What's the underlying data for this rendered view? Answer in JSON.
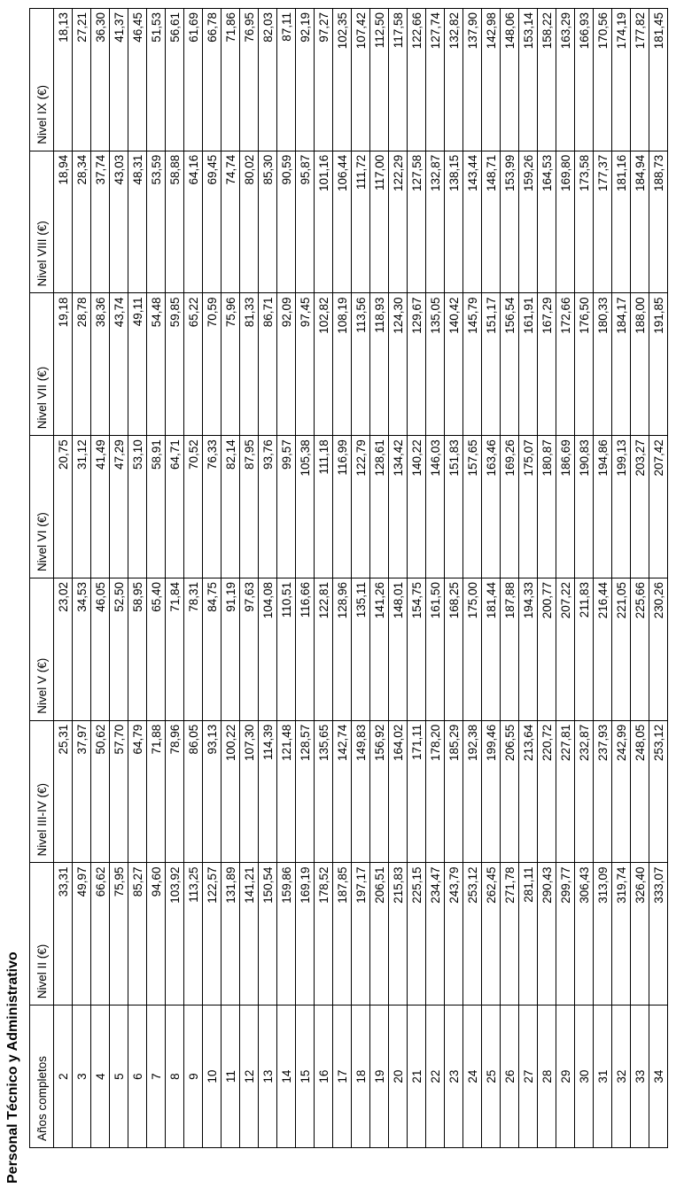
{
  "title": "Personal Técnico y Administrativo",
  "headers": [
    "Años completos",
    "Nivel II (€)",
    "Nivel III-IV (€)",
    "Nivel V (€)",
    "Nivel VI (€)",
    "Nivel VII (€)",
    "Nivel VIII (€)",
    "Nivel IX (€)"
  ],
  "rows": [
    [
      "2",
      "33,31",
      "25,31",
      "23,02",
      "20,75",
      "19,18",
      "18,94",
      "18,13"
    ],
    [
      "3",
      "49,97",
      "37,97",
      "34,53",
      "31,12",
      "28,78",
      "28,34",
      "27,21"
    ],
    [
      "4",
      "66,62",
      "50,62",
      "46,05",
      "41,49",
      "38,36",
      "37,74",
      "36,30"
    ],
    [
      "5",
      "75,95",
      "57,70",
      "52,50",
      "47,29",
      "43,74",
      "43,03",
      "41,37"
    ],
    [
      "6",
      "85,27",
      "64,79",
      "58,95",
      "53,10",
      "49,11",
      "48,31",
      "46,45"
    ],
    [
      "7",
      "94,60",
      "71,88",
      "65,40",
      "58,91",
      "54,48",
      "53,59",
      "51,53"
    ],
    [
      "8",
      "103,92",
      "78,96",
      "71,84",
      "64,71",
      "59,85",
      "58,88",
      "56,61"
    ],
    [
      "9",
      "113,25",
      "86,05",
      "78,31",
      "70,52",
      "65,22",
      "64,16",
      "61,69"
    ],
    [
      "10",
      "122,57",
      "93,13",
      "84,75",
      "76,33",
      "70,59",
      "69,45",
      "66,78"
    ],
    [
      "11",
      "131,89",
      "100,22",
      "91,19",
      "82,14",
      "75,96",
      "74,74",
      "71,86"
    ],
    [
      "12",
      "141,21",
      "107,30",
      "97,63",
      "87,95",
      "81,33",
      "80,02",
      "76,95"
    ],
    [
      "13",
      "150,54",
      "114,39",
      "104,08",
      "93,76",
      "86,71",
      "85,30",
      "82,03"
    ],
    [
      "14",
      "159,86",
      "121,48",
      "110,51",
      "99,57",
      "92,09",
      "90,59",
      "87,11"
    ],
    [
      "15",
      "169,19",
      "128,57",
      "116,66",
      "105,38",
      "97,45",
      "95,87",
      "92,19"
    ],
    [
      "16",
      "178,52",
      "135,65",
      "122,81",
      "111,18",
      "102,82",
      "101,16",
      "97,27"
    ],
    [
      "17",
      "187,85",
      "142,74",
      "128,96",
      "116,99",
      "108,19",
      "106,44",
      "102,35"
    ],
    [
      "18",
      "197,17",
      "149,83",
      "135,11",
      "122,79",
      "113,56",
      "111,72",
      "107,42"
    ],
    [
      "19",
      "206,51",
      "156,92",
      "141,26",
      "128,61",
      "118,93",
      "117,00",
      "112,50"
    ],
    [
      "20",
      "215,83",
      "164,02",
      "148,01",
      "134,42",
      "124,30",
      "122,29",
      "117,58"
    ],
    [
      "21",
      "225,15",
      "171,11",
      "154,75",
      "140,22",
      "129,67",
      "127,58",
      "122,66"
    ],
    [
      "22",
      "234,47",
      "178,20",
      "161,50",
      "146,03",
      "135,05",
      "132,87",
      "127,74"
    ],
    [
      "23",
      "243,79",
      "185,29",
      "168,25",
      "151,83",
      "140,42",
      "138,15",
      "132,82"
    ],
    [
      "24",
      "253,12",
      "192,38",
      "175,00",
      "157,65",
      "145,79",
      "143,44",
      "137,90"
    ],
    [
      "25",
      "262,45",
      "199,46",
      "181,44",
      "163,46",
      "151,17",
      "148,71",
      "142,98"
    ],
    [
      "26",
      "271,78",
      "206,55",
      "187,88",
      "169,26",
      "156,54",
      "153,99",
      "148,06"
    ],
    [
      "27",
      "281,11",
      "213,64",
      "194,33",
      "175,07",
      "161,91",
      "159,26",
      "153,14"
    ],
    [
      "28",
      "290,43",
      "220,72",
      "200,77",
      "180,87",
      "167,29",
      "164,53",
      "158,22"
    ],
    [
      "29",
      "299,77",
      "227,81",
      "207,22",
      "186,69",
      "172,66",
      "169,80",
      "163,29"
    ],
    [
      "30",
      "306,43",
      "232,87",
      "211,83",
      "190,83",
      "176,50",
      "173,58",
      "166,93"
    ],
    [
      "31",
      "313,09",
      "237,93",
      "216,44",
      "194,86",
      "180,33",
      "177,37",
      "170,56"
    ],
    [
      "32",
      "319,74",
      "242,99",
      "221,05",
      "199,13",
      "184,17",
      "181,16",
      "174,19"
    ],
    [
      "33",
      "326,40",
      "248,05",
      "225,66",
      "203,27",
      "188,00",
      "184,94",
      "177,82"
    ],
    [
      "34",
      "333,07",
      "253,12",
      "230,26",
      "207,42",
      "191,85",
      "188,73",
      "181,45"
    ]
  ]
}
